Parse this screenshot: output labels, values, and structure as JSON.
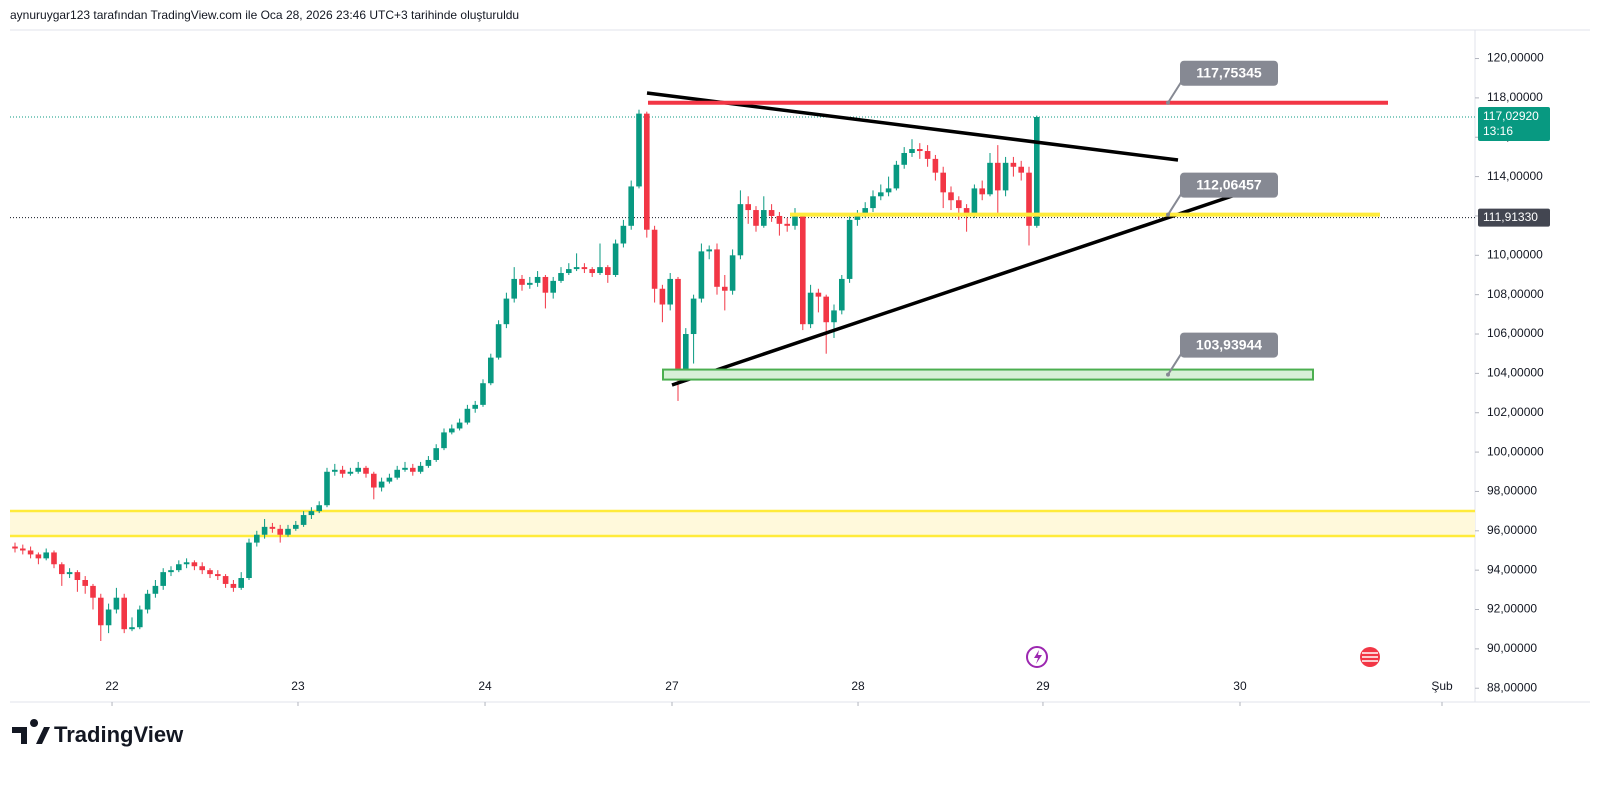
{
  "header": {
    "caption": "aynuruygar123 tarafından TradingView.com ile Oca 28, 2026 23:46 UTC+3 tarihinde oluşturuldu"
  },
  "footer": {
    "logo": "TradingView"
  },
  "chart_data": {
    "type": "candlestick",
    "up_color": "#089981",
    "down_color": "#f23645",
    "ylim": [
      87.3,
      121.45
    ],
    "yticks": [
      {
        "value": 88,
        "label": "88,00000"
      },
      {
        "value": 90,
        "label": "90,00000"
      },
      {
        "value": 92,
        "label": "92,00000"
      },
      {
        "value": 94,
        "label": "94,00000"
      },
      {
        "value": 96,
        "label": "96,00000"
      },
      {
        "value": 98,
        "label": "98,00000"
      },
      {
        "value": 100,
        "label": "100,00000"
      },
      {
        "value": 102,
        "label": "102,00000"
      },
      {
        "value": 104,
        "label": "104,00000"
      },
      {
        "value": 106,
        "label": "106,00000"
      },
      {
        "value": 108,
        "label": "108,00000"
      },
      {
        "value": 110,
        "label": "110,00000"
      },
      {
        "value": 112,
        "label": "112,00000"
      },
      {
        "value": 114,
        "label": "114,00000"
      },
      {
        "value": 116,
        "label": "116,00000"
      },
      {
        "value": 118,
        "label": "118,00000"
      },
      {
        "value": 120,
        "label": "120,00000"
      }
    ],
    "xlim": [
      -0.641,
      187.18
    ],
    "xticks": [
      {
        "value": 12.44,
        "label": "22"
      },
      {
        "value": 36.28,
        "label": "23"
      },
      {
        "value": 60.26,
        "label": "24"
      },
      {
        "value": 84.23,
        "label": "27"
      },
      {
        "value": 108.08,
        "label": "28"
      },
      {
        "value": 131.79,
        "label": "29"
      },
      {
        "value": 157.05,
        "label": "30"
      },
      {
        "value": 182.95,
        "label": "Şub"
      }
    ],
    "levels": [
      {
        "value": 117.75345,
        "label": "117,75345",
        "color": "#f23645"
      },
      {
        "value": 112.06457,
        "label": "112,06457",
        "color": "#ffeb3b"
      },
      {
        "value": 103.93944,
        "label": "103,93944",
        "color": "#4caf50"
      }
    ],
    "last_price": {
      "value": 117.0292,
      "label": "117,02920",
      "time": "13:16"
    },
    "marker_price": {
      "value": 111.9133,
      "label": "111,91330"
    },
    "ohlc": [
      [
        95.2,
        95.4,
        94.9,
        95.1
      ],
      [
        95.1,
        95.3,
        94.8,
        95.0
      ],
      [
        95.0,
        95.2,
        94.6,
        94.8
      ],
      [
        94.8,
        94.9,
        94.3,
        94.6
      ],
      [
        94.6,
        95.1,
        94.5,
        94.9
      ],
      [
        94.9,
        95.0,
        94.1,
        94.3
      ],
      [
        94.3,
        94.4,
        93.2,
        93.8
      ],
      [
        93.8,
        94.1,
        93.6,
        93.9
      ],
      [
        93.9,
        94.0,
        92.9,
        93.5
      ],
      [
        93.5,
        93.7,
        92.8,
        93.2
      ],
      [
        93.2,
        93.3,
        92.0,
        92.6
      ],
      [
        92.6,
        92.8,
        90.4,
        91.2
      ],
      [
        91.2,
        92.3,
        90.8,
        92.0
      ],
      [
        92.0,
        93.1,
        91.8,
        92.6
      ],
      [
        92.6,
        92.8,
        90.8,
        91.0
      ],
      [
        91.0,
        91.6,
        90.9,
        91.1
      ],
      [
        91.1,
        92.2,
        91.0,
        92.0
      ],
      [
        92.0,
        93.0,
        91.8,
        92.8
      ],
      [
        92.8,
        93.5,
        92.6,
        93.2
      ],
      [
        93.2,
        94.1,
        93.0,
        93.9
      ],
      [
        93.9,
        94.2,
        93.7,
        94.0
      ],
      [
        94.0,
        94.5,
        93.9,
        94.3
      ],
      [
        94.3,
        94.6,
        94.1,
        94.4
      ],
      [
        94.4,
        94.5,
        94.0,
        94.2
      ],
      [
        94.2,
        94.4,
        93.8,
        94.0
      ],
      [
        94.0,
        94.1,
        93.6,
        93.8
      ],
      [
        93.8,
        94.0,
        93.5,
        93.7
      ],
      [
        93.7,
        93.8,
        93.1,
        93.3
      ],
      [
        93.3,
        93.5,
        92.9,
        93.1
      ],
      [
        93.1,
        93.9,
        93.0,
        93.6
      ],
      [
        93.6,
        95.6,
        93.5,
        95.4
      ],
      [
        95.4,
        96.0,
        95.2,
        95.8
      ],
      [
        95.8,
        96.6,
        95.6,
        96.2
      ],
      [
        96.2,
        96.4,
        95.9,
        96.1
      ],
      [
        96.1,
        96.3,
        95.4,
        95.8
      ],
      [
        95.8,
        96.3,
        95.7,
        96.1
      ],
      [
        96.1,
        96.5,
        96.0,
        96.3
      ],
      [
        96.3,
        97.0,
        96.2,
        96.8
      ],
      [
        96.8,
        97.2,
        96.6,
        97.0
      ],
      [
        97.0,
        97.5,
        96.9,
        97.3
      ],
      [
        97.3,
        99.2,
        97.2,
        99.0
      ],
      [
        99.0,
        99.4,
        98.8,
        99.1
      ],
      [
        99.1,
        99.3,
        98.7,
        98.9
      ],
      [
        98.9,
        99.2,
        98.8,
        99.0
      ],
      [
        99.0,
        99.5,
        98.9,
        99.2
      ],
      [
        99.2,
        99.3,
        98.7,
        98.9
      ],
      [
        98.9,
        99.0,
        97.6,
        98.2
      ],
      [
        98.2,
        98.7,
        98.0,
        98.5
      ],
      [
        98.5,
        98.9,
        98.4,
        98.7
      ],
      [
        98.7,
        99.3,
        98.6,
        99.1
      ],
      [
        99.1,
        99.5,
        99.0,
        99.2
      ],
      [
        99.2,
        99.4,
        98.8,
        99.0
      ],
      [
        99.0,
        99.5,
        98.9,
        99.3
      ],
      [
        99.3,
        99.8,
        99.2,
        99.6
      ],
      [
        99.6,
        100.4,
        99.5,
        100.2
      ],
      [
        100.2,
        101.2,
        100.1,
        101.0
      ],
      [
        101.0,
        101.4,
        100.9,
        101.2
      ],
      [
        101.2,
        101.7,
        101.1,
        101.5
      ],
      [
        101.5,
        102.4,
        101.4,
        102.2
      ],
      [
        102.2,
        102.6,
        102.0,
        102.4
      ],
      [
        102.4,
        103.7,
        102.3,
        103.5
      ],
      [
        103.5,
        105.0,
        103.4,
        104.8
      ],
      [
        104.8,
        106.7,
        104.7,
        106.5
      ],
      [
        106.5,
        108.1,
        106.3,
        107.8
      ],
      [
        107.8,
        109.4,
        107.6,
        108.8
      ],
      [
        108.8,
        109.0,
        108.2,
        108.5
      ],
      [
        108.5,
        108.9,
        108.3,
        108.6
      ],
      [
        108.6,
        109.2,
        108.4,
        108.9
      ],
      [
        108.9,
        109.0,
        107.3,
        108.1
      ],
      [
        108.1,
        108.9,
        107.8,
        108.7
      ],
      [
        108.7,
        109.4,
        108.6,
        109.1
      ],
      [
        109.1,
        109.6,
        109.0,
        109.3
      ],
      [
        109.3,
        110.1,
        109.2,
        109.4
      ],
      [
        109.4,
        109.6,
        109.1,
        109.3
      ],
      [
        109.3,
        109.4,
        108.9,
        109.1
      ],
      [
        109.1,
        110.6,
        109.0,
        109.4
      ],
      [
        109.4,
        109.5,
        108.6,
        109.0
      ],
      [
        109.0,
        110.8,
        108.9,
        110.6
      ],
      [
        110.6,
        111.8,
        110.4,
        111.5
      ],
      [
        111.5,
        113.8,
        111.3,
        113.5
      ],
      [
        113.5,
        117.4,
        113.4,
        117.2
      ],
      [
        117.2,
        117.3,
        110.9,
        111.3
      ],
      [
        111.3,
        111.5,
        107.6,
        108.3
      ],
      [
        108.3,
        108.5,
        106.6,
        107.5
      ],
      [
        107.5,
        109.1,
        107.2,
        108.8
      ],
      [
        108.8,
        108.9,
        102.6,
        104.0
      ],
      [
        104.0,
        106.3,
        103.8,
        106.0
      ],
      [
        106.0,
        108.0,
        104.5,
        107.8
      ],
      [
        107.8,
        110.6,
        107.6,
        110.2
      ],
      [
        110.2,
        110.5,
        109.8,
        110.3
      ],
      [
        110.3,
        110.6,
        108.0,
        108.4
      ],
      [
        108.4,
        109.0,
        107.2,
        108.2
      ],
      [
        108.2,
        110.3,
        108.0,
        110.0
      ],
      [
        110.0,
        113.3,
        109.8,
        112.6
      ],
      [
        112.6,
        113.0,
        111.6,
        112.3
      ],
      [
        112.3,
        112.5,
        111.2,
        111.5
      ],
      [
        111.5,
        113.0,
        111.4,
        112.3
      ],
      [
        112.3,
        112.6,
        111.7,
        112.0
      ],
      [
        112.0,
        112.2,
        111.0,
        111.6
      ],
      [
        111.6,
        111.9,
        111.2,
        111.5
      ],
      [
        111.5,
        112.4,
        111.3,
        112.0
      ],
      [
        112.0,
        112.1,
        106.2,
        106.5
      ],
      [
        106.5,
        108.5,
        106.3,
        108.1
      ],
      [
        108.1,
        108.3,
        107.1,
        107.9
      ],
      [
        107.9,
        108.0,
        105.0,
        106.6
      ],
      [
        106.6,
        107.5,
        105.8,
        107.2
      ],
      [
        107.2,
        109.0,
        107.0,
        108.8
      ],
      [
        108.8,
        112.0,
        108.6,
        111.8
      ],
      [
        111.8,
        112.3,
        111.5,
        112.1
      ],
      [
        112.1,
        112.7,
        111.9,
        112.4
      ],
      [
        112.4,
        113.3,
        112.2,
        113.0
      ],
      [
        113.0,
        113.6,
        112.8,
        113.2
      ],
      [
        113.2,
        114.0,
        113.0,
        113.4
      ],
      [
        113.4,
        114.8,
        113.3,
        114.6
      ],
      [
        114.6,
        115.5,
        114.4,
        115.2
      ],
      [
        115.2,
        115.9,
        115.0,
        115.4
      ],
      [
        115.4,
        115.7,
        114.9,
        115.3
      ],
      [
        115.3,
        115.6,
        114.5,
        114.9
      ],
      [
        114.9,
        115.1,
        113.8,
        114.2
      ],
      [
        114.2,
        114.5,
        112.4,
        113.2
      ],
      [
        113.2,
        113.5,
        112.3,
        112.8
      ],
      [
        112.8,
        113.0,
        111.8,
        112.4
      ],
      [
        112.4,
        112.6,
        111.2,
        112.0
      ],
      [
        112.0,
        113.6,
        111.9,
        113.4
      ],
      [
        113.4,
        113.8,
        112.8,
        113.1
      ],
      [
        113.1,
        115.2,
        113.0,
        114.7
      ],
      [
        114.7,
        115.6,
        112.0,
        113.3
      ],
      [
        113.3,
        115.0,
        113.0,
        114.7
      ],
      [
        114.7,
        115.0,
        114.0,
        114.5
      ],
      [
        114.5,
        114.8,
        113.8,
        114.2
      ],
      [
        114.2,
        114.5,
        110.5,
        111.5
      ],
      [
        111.5,
        117.1,
        111.4,
        117.0292
      ]
    ]
  }
}
